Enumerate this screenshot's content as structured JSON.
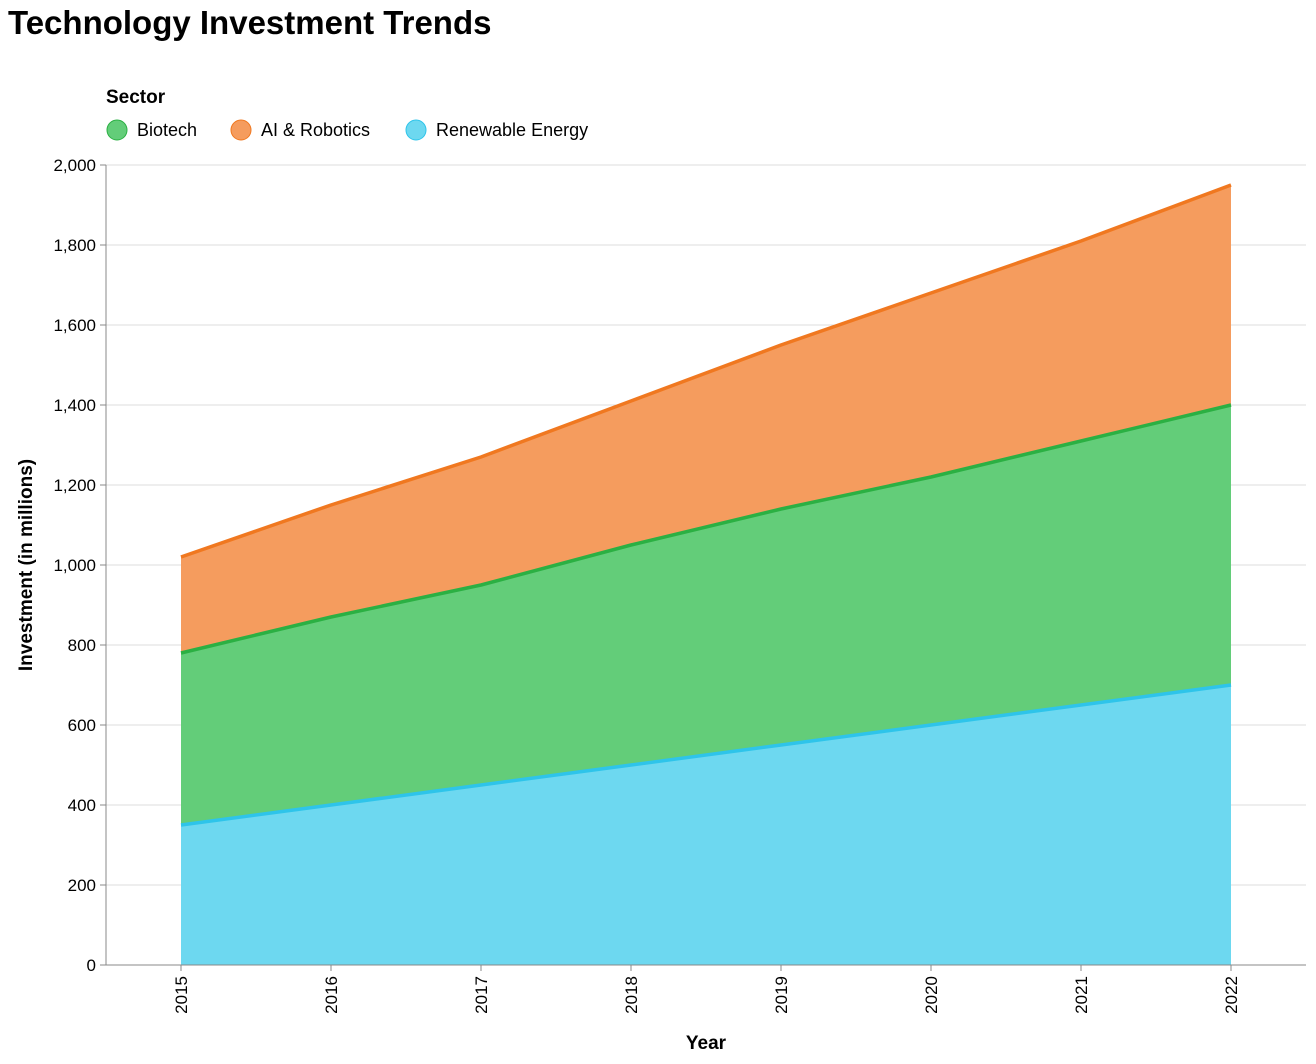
{
  "chart_data": {
    "type": "area",
    "stacked": true,
    "title": "Technology Investment Trends",
    "xlabel": "Year",
    "ylabel": "Investment (in millions)",
    "ylim": [
      0,
      2000
    ],
    "yticks": [
      0,
      200,
      400,
      600,
      800,
      1000,
      1200,
      1400,
      1600,
      1800,
      2000
    ],
    "ytick_labels": [
      "0",
      "200",
      "400",
      "600",
      "800",
      "1,000",
      "1,200",
      "1,400",
      "1,600",
      "1,800",
      "2,000"
    ],
    "x": [
      "2015",
      "2016",
      "2017",
      "2018",
      "2019",
      "2020",
      "2021",
      "2022"
    ],
    "grid": true,
    "legend": {
      "title": "Sector",
      "placement": "top-left",
      "entries": [
        "Biotech",
        "AI & Robotics",
        "Renewable Energy"
      ]
    },
    "series": [
      {
        "name": "Renewable Energy",
        "values": [
          350,
          400,
          450,
          500,
          550,
          600,
          650,
          700
        ],
        "fill": "#6dd8f0",
        "stroke": "#2ec4ea"
      },
      {
        "name": "Biotech",
        "values": [
          430,
          470,
          500,
          550,
          590,
          620,
          660,
          700
        ],
        "fill": "#63cd79",
        "stroke": "#2bb043"
      },
      {
        "name": "AI & Robotics",
        "values": [
          240,
          280,
          320,
          360,
          410,
          460,
          500,
          550
        ],
        "fill": "#f59c5e",
        "stroke": "#f07820"
      }
    ]
  }
}
